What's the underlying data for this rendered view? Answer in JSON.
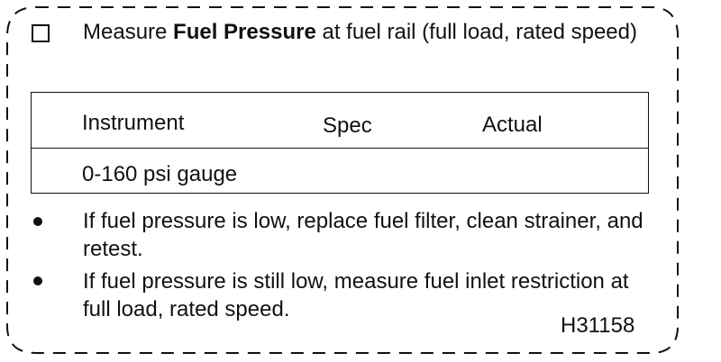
{
  "step": {
    "prefix": "Measure ",
    "bold": "Fuel Pressure",
    "suffix": " at fuel rail (full load, rated speed)"
  },
  "table": {
    "headers": [
      "Instrument",
      "Spec",
      "Actual"
    ],
    "rows": [
      [
        "0-160 psi gauge",
        "",
        ""
      ]
    ]
  },
  "bullets": [
    "If fuel pressure is low, replace fuel filter, clean strainer, and retest.",
    "If fuel pressure is still low, measure fuel inlet restriction at full load, rated speed."
  ],
  "figure_code": "H31158"
}
